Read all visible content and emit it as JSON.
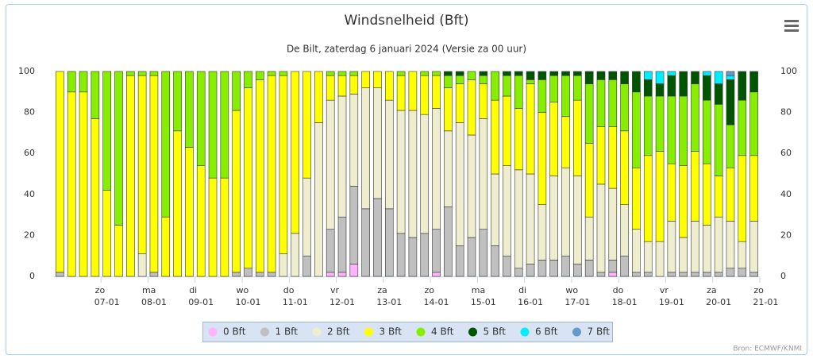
{
  "chart_data": {
    "type": "stacked_bar",
    "title": "Windsnelheid (Bft)",
    "subtitle": "De Bilt, zaterdag 6 januari 2024 (Versie za 00 uur)",
    "credit": "Bron: ECMWF/KNMI",
    "ylim": [
      0,
      100
    ],
    "yticks": [
      0,
      20,
      40,
      60,
      80,
      100
    ],
    "y2lim": [
      0,
      100
    ],
    "y2ticks": [
      0,
      20,
      40,
      60,
      80,
      100
    ],
    "xticks": [
      {
        "value": 4,
        "label": [
          "zo",
          "07-01"
        ]
      },
      {
        "value": 8,
        "label": [
          "ma",
          "08-01"
        ]
      },
      {
        "value": 12,
        "label": [
          "di",
          "09-01"
        ]
      },
      {
        "value": 16,
        "label": [
          "wo",
          "10-01"
        ]
      },
      {
        "value": 20,
        "label": [
          "do",
          "11-01"
        ]
      },
      {
        "value": 24,
        "label": [
          "vr",
          "12-01"
        ]
      },
      {
        "value": 28,
        "label": [
          "za",
          "13-01"
        ]
      },
      {
        "value": 32,
        "label": [
          "zo",
          "14-01"
        ]
      },
      {
        "value": 36,
        "label": [
          "ma",
          "15-01"
        ]
      },
      {
        "value": 40,
        "label": [
          "di",
          "16-01"
        ]
      },
      {
        "value": 44,
        "label": [
          "wo",
          "17-01"
        ]
      },
      {
        "value": 48,
        "label": [
          "do",
          "18-01"
        ]
      },
      {
        "value": 52,
        "label": [
          "vr",
          "19-01"
        ]
      },
      {
        "value": 56,
        "label": [
          "za",
          "20-01"
        ]
      },
      {
        "value": 60,
        "label": [
          "zo",
          "21-01"
        ]
      }
    ],
    "legend": "bottom",
    "series": [
      {
        "name": "0 Bft",
        "color": "#ffb3ff",
        "values": [
          0,
          0,
          0,
          0,
          0,
          0,
          0,
          0,
          0,
          0,
          0,
          0,
          0,
          0,
          0,
          0,
          0,
          0,
          0,
          0,
          0,
          0,
          0,
          2,
          2,
          6,
          0,
          0,
          0,
          0,
          0,
          0,
          2,
          0,
          0,
          0,
          0,
          0,
          0,
          0,
          0,
          0,
          0,
          0,
          0,
          0,
          0,
          2,
          0,
          0,
          0,
          0,
          0,
          0,
          0,
          0,
          0,
          0,
          0,
          0
        ]
      },
      {
        "name": "1 Bft",
        "color": "#c0c0c0",
        "values": [
          2,
          0,
          0,
          0,
          0,
          0,
          0,
          0,
          2,
          0,
          0,
          0,
          0,
          0,
          0,
          2,
          4,
          2,
          2,
          0,
          0,
          10,
          0,
          21,
          27,
          38,
          33,
          38,
          33,
          21,
          19,
          21,
          21,
          34,
          15,
          19,
          23,
          15,
          10,
          4,
          6,
          8,
          8,
          10,
          6,
          8,
          2,
          6,
          10,
          2,
          2,
          0,
          2,
          2,
          2,
          2,
          2,
          4,
          4,
          2
        ]
      },
      {
        "name": "2 Bft",
        "color": "#eeeecf",
        "values": [
          0,
          0,
          0,
          0,
          0,
          0,
          0,
          11,
          0,
          0,
          0,
          0,
          0,
          0,
          0,
          0,
          0,
          0,
          0,
          11,
          21,
          38,
          75,
          63,
          59,
          45,
          59,
          54,
          53,
          60,
          62,
          58,
          59,
          37,
          60,
          50,
          54,
          35,
          44,
          48,
          44,
          27,
          41,
          43,
          43,
          21,
          43,
          35,
          25,
          21,
          15,
          17,
          25,
          17,
          25,
          23,
          27,
          23,
          13,
          25
        ]
      },
      {
        "name": "3 Bft",
        "color": "#ffff00",
        "values": [
          98,
          90,
          90,
          77,
          42,
          25,
          98,
          87,
          96,
          29,
          71,
          63,
          54,
          48,
          48,
          79,
          88,
          94,
          96,
          87,
          79,
          52,
          25,
          12,
          10,
          9,
          8,
          8,
          14,
          17,
          19,
          19,
          16,
          21,
          19,
          27,
          17,
          36,
          34,
          30,
          44,
          45,
          36,
          25,
          37,
          36,
          28,
          30,
          36,
          30,
          42,
          44,
          28,
          35,
          34,
          30,
          20,
          26,
          42,
          32
        ]
      },
      {
        "name": "4 Bft",
        "color": "#88ee00",
        "values": [
          0,
          10,
          10,
          23,
          58,
          75,
          2,
          2,
          2,
          71,
          29,
          37,
          46,
          52,
          52,
          19,
          8,
          4,
          2,
          2,
          0,
          0,
          0,
          2,
          2,
          2,
          0,
          0,
          0,
          2,
          0,
          2,
          2,
          6,
          4,
          4,
          4,
          14,
          10,
          16,
          2,
          16,
          13,
          20,
          12,
          29,
          23,
          23,
          23,
          37,
          29,
          27,
          33,
          34,
          33,
          31,
          35,
          21,
          27,
          31
        ]
      },
      {
        "name": "5 Bft",
        "color": "#005500",
        "values": [
          0,
          0,
          0,
          0,
          0,
          0,
          0,
          0,
          0,
          0,
          0,
          0,
          0,
          0,
          0,
          0,
          0,
          0,
          0,
          0,
          0,
          0,
          0,
          0,
          0,
          0,
          0,
          0,
          0,
          0,
          0,
          0,
          0,
          2,
          2,
          0,
          2,
          0,
          2,
          2,
          4,
          4,
          2,
          2,
          2,
          6,
          4,
          4,
          6,
          10,
          8,
          6,
          10,
          12,
          6,
          12,
          10,
          22,
          14,
          10
        ]
      },
      {
        "name": "6 Bft",
        "color": "#00eeff",
        "values": [
          0,
          0,
          0,
          0,
          0,
          0,
          0,
          0,
          0,
          0,
          0,
          0,
          0,
          0,
          0,
          0,
          0,
          0,
          0,
          0,
          0,
          0,
          0,
          0,
          0,
          0,
          0,
          0,
          0,
          0,
          0,
          0,
          0,
          0,
          0,
          0,
          0,
          0,
          0,
          0,
          0,
          0,
          0,
          0,
          0,
          0,
          0,
          0,
          0,
          0,
          4,
          6,
          2,
          0,
          0,
          2,
          6,
          2,
          0,
          0
        ]
      },
      {
        "name": "7 Bft",
        "color": "#6699cc",
        "values": [
          0,
          0,
          0,
          0,
          0,
          0,
          0,
          0,
          0,
          0,
          0,
          0,
          0,
          0,
          0,
          0,
          0,
          0,
          0,
          0,
          0,
          0,
          0,
          0,
          0,
          0,
          0,
          0,
          0,
          0,
          0,
          0,
          0,
          0,
          0,
          0,
          0,
          0,
          0,
          0,
          0,
          0,
          0,
          0,
          0,
          0,
          0,
          0,
          0,
          0,
          0,
          0,
          0,
          0,
          0,
          0,
          0,
          2,
          0,
          0
        ]
      }
    ]
  }
}
